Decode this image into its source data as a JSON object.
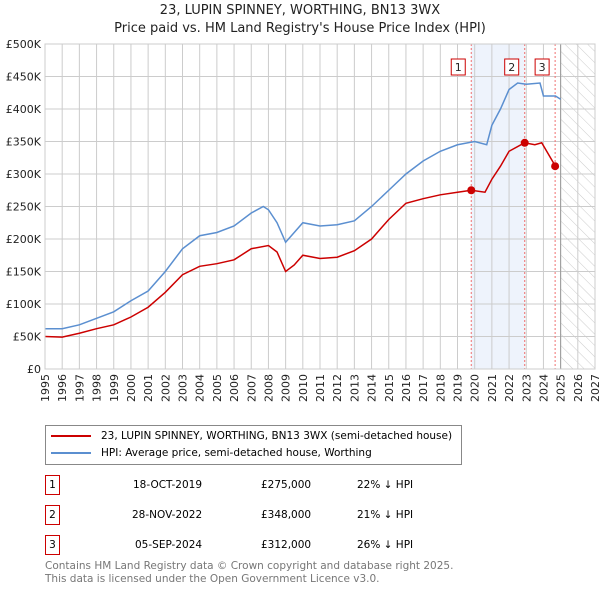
{
  "chart_data": {
    "type": "line",
    "title": "23, LUPIN SPINNEY, WORTHING, BN13 3WX",
    "subtitle": "Price paid vs. HM Land Registry's House Price Index (HPI)",
    "xlim": [
      1995,
      2027
    ],
    "ylim": [
      0,
      500000
    ],
    "x_ticks": [
      "1995",
      "1996",
      "1997",
      "1998",
      "1999",
      "2000",
      "2001",
      "2002",
      "2003",
      "2004",
      "2005",
      "2006",
      "2007",
      "2008",
      "2009",
      "2010",
      "2011",
      "2012",
      "2013",
      "2014",
      "2015",
      "2016",
      "2017",
      "2018",
      "2019",
      "2020",
      "2021",
      "2022",
      "2023",
      "2024",
      "2025",
      "2026",
      "2027"
    ],
    "y_ticks": [
      {
        "v": 0,
        "l": "£0"
      },
      {
        "v": 50000,
        "l": "£50K"
      },
      {
        "v": 100000,
        "l": "£100K"
      },
      {
        "v": 150000,
        "l": "£150K"
      },
      {
        "v": 200000,
        "l": "£200K"
      },
      {
        "v": 250000,
        "l": "£250K"
      },
      {
        "v": 300000,
        "l": "£300K"
      },
      {
        "v": 350000,
        "l": "£350K"
      },
      {
        "v": 400000,
        "l": "£400K"
      },
      {
        "v": 450000,
        "l": "£450K"
      },
      {
        "v": 500000,
        "l": "£500K"
      }
    ],
    "grid": true,
    "series": [
      {
        "name": "23, LUPIN SPINNEY, WORTHING, BN13 3WX (semi-detached house)",
        "color": "#cc0000",
        "x": [
          1995,
          1996,
          1997,
          1998,
          1999,
          2000,
          2001,
          2002,
          2003,
          2004,
          2005,
          2006,
          2007,
          2008,
          2008.5,
          2009,
          2009.5,
          2010,
          2011,
          2012,
          2013,
          2014,
          2015,
          2016,
          2017,
          2018,
          2019,
          2019.8,
          2020.6,
          2021,
          2021.5,
          2022,
          2022.9,
          2023.5,
          2023.9,
          2024.3,
          2024.7
        ],
        "y": [
          50000,
          49000,
          55000,
          62000,
          68000,
          80000,
          95000,
          118000,
          145000,
          158000,
          162000,
          168000,
          185000,
          190000,
          180000,
          150000,
          160000,
          175000,
          170000,
          172000,
          182000,
          200000,
          230000,
          255000,
          262000,
          268000,
          272000,
          275000,
          272000,
          292000,
          312000,
          335000,
          348000,
          345000,
          348000,
          330000,
          312000
        ]
      },
      {
        "name": "HPI: Average price, semi-detached house, Worthing",
        "color": "#5b8fd0",
        "x": [
          1995,
          1996,
          1997,
          1998,
          1999,
          2000,
          2001,
          2002,
          2003,
          2004,
          2005,
          2006,
          2007,
          2007.7,
          2008,
          2008.5,
          2009,
          2009.5,
          2010,
          2011,
          2012,
          2013,
          2014,
          2015,
          2016,
          2017,
          2018,
          2019,
          2020,
          2020.7,
          2021,
          2021.5,
          2022,
          2022.5,
          2023,
          2023.8,
          2024,
          2024.7,
          2025
        ],
        "y": [
          62000,
          62000,
          68000,
          78000,
          88000,
          105000,
          120000,
          150000,
          185000,
          205000,
          210000,
          220000,
          240000,
          250000,
          245000,
          225000,
          195000,
          210000,
          225000,
          220000,
          222000,
          228000,
          250000,
          275000,
          300000,
          320000,
          335000,
          345000,
          350000,
          345000,
          375000,
          400000,
          430000,
          440000,
          438000,
          440000,
          420000,
          420000,
          415000
        ]
      }
    ],
    "sales": [
      {
        "n": "1",
        "x": 2019.8,
        "y": 275000
      },
      {
        "n": "2",
        "x": 2022.91,
        "y": 348000
      },
      {
        "n": "3",
        "x": 2024.68,
        "y": 312000
      }
    ],
    "shaded_range": [
      2019.8,
      2022.91
    ],
    "forecast_from": 2025.0,
    "legend_position": "below"
  },
  "table": [
    {
      "n": "1",
      "date": "18-OCT-2019",
      "price": "£275,000",
      "hpi": "22% ↓ HPI"
    },
    {
      "n": "2",
      "date": "28-NOV-2022",
      "price": "£348,000",
      "hpi": "21% ↓ HPI"
    },
    {
      "n": "3",
      "date": "05-SEP-2024",
      "price": "£312,000",
      "hpi": "26% ↓ HPI"
    }
  ],
  "footer": [
    "Contains HM Land Registry data © Crown copyright and database right 2025.",
    "This data is licensed under the Open Government Licence v3.0."
  ]
}
